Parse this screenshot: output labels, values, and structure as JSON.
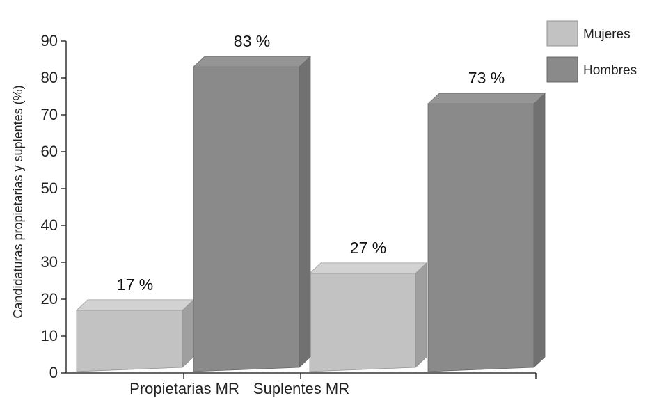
{
  "chart_data": {
    "type": "bar",
    "style": "3d-column",
    "categories": [
      "Propietarias MR",
      "Suplentes MR"
    ],
    "series": [
      {
        "name": "Mujeres",
        "values": [
          17,
          27
        ],
        "color": "#c2c2c2"
      },
      {
        "name": "Hombres",
        "values": [
          83,
          73
        ],
        "color": "#8a8a8a"
      }
    ],
    "data_labels": [
      [
        "17 %",
        "27 %"
      ],
      [
        "83 %",
        "73 %"
      ]
    ],
    "title": "",
    "xlabel": "",
    "ylabel": "Candidaturas propietarias y suplentes (%)",
    "ylim": [
      0,
      90
    ],
    "yticks": [
      "0",
      "10",
      "20",
      "30",
      "40",
      "50",
      "60",
      "70",
      "80",
      "90"
    ],
    "grid": false,
    "legend_position": "top-right"
  }
}
